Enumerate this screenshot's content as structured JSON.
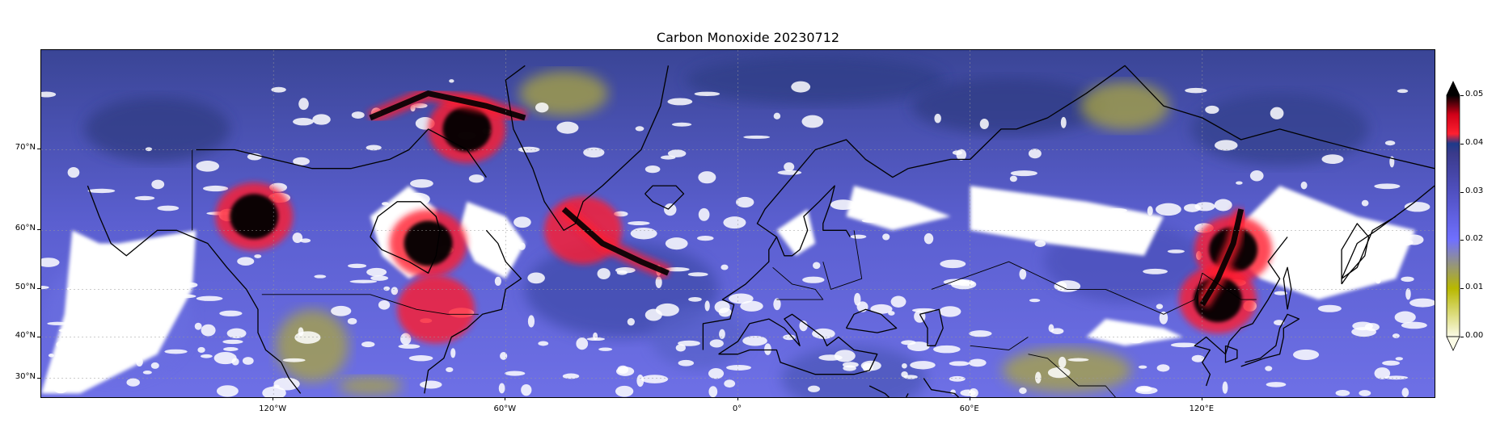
{
  "title": "Carbon Monoxide 20230712",
  "map": {
    "projection": "Mercator",
    "extent_lon": [
      -180,
      180
    ],
    "extent_lat": [
      25,
      78
    ],
    "coastlines": true,
    "country_borders": true,
    "gridlines": true,
    "missing_data_color": "#ffffff"
  },
  "latitude_labels": [
    {
      "lat": 70,
      "text": "70°N"
    },
    {
      "lat": 60,
      "text": "60°N"
    },
    {
      "lat": 50,
      "text": "50°N"
    },
    {
      "lat": 40,
      "text": "40°N"
    },
    {
      "lat": 30,
      "text": "30°N"
    }
  ],
  "longitude_labels": [
    {
      "lon": -120,
      "text": "120°W"
    },
    {
      "lon": -60,
      "text": "60°W"
    },
    {
      "lon": 0,
      "text": "0°"
    },
    {
      "lon": 60,
      "text": "60°E"
    },
    {
      "lon": 120,
      "text": "120°E"
    }
  ],
  "colorbar": {
    "min": 0.0,
    "max": 0.05,
    "extend": "both",
    "ticks": [
      "0.00",
      "0.01",
      "0.02",
      "0.03",
      "0.04",
      "0.05"
    ],
    "stops": [
      {
        "v": 0.0,
        "color": "#fbfbe6"
      },
      {
        "v": 0.01,
        "color": "#b8b800"
      },
      {
        "v": 0.02,
        "color": "#7070ff"
      },
      {
        "v": 0.03,
        "color": "#5050c0"
      },
      {
        "v": 0.038,
        "color": "#3a3a8a"
      },
      {
        "v": 0.04,
        "color": "#1e3a8a"
      },
      {
        "v": 0.042,
        "color": "#ff2030"
      },
      {
        "v": 0.046,
        "color": "#d00018"
      },
      {
        "v": 0.05,
        "color": "#000000"
      }
    ]
  },
  "hotspots": [
    {
      "region": "Western Canada",
      "lon": -125,
      "lat": 62,
      "level": "max"
    },
    {
      "region": "Hudson Bay / Quebec",
      "lon": -80,
      "lat": 58,
      "level": "max"
    },
    {
      "region": "Northern Canada arc",
      "lon": -70,
      "lat": 72,
      "level": "max"
    },
    {
      "region": "Greenland south",
      "lon": -40,
      "lat": 60,
      "level": "high"
    },
    {
      "region": "Eastern Siberia",
      "lon": 128,
      "lat": 57,
      "level": "max"
    },
    {
      "region": "Northeast China",
      "lon": 124,
      "lat": 48,
      "level": "max"
    },
    {
      "region": "Great Lakes",
      "lon": -78,
      "lat": 46,
      "level": "high"
    }
  ],
  "low_regions": [
    {
      "region": "Western US",
      "lon": -110,
      "lat": 38
    },
    {
      "region": "Tibetan Plateau",
      "lon": 85,
      "lat": 33
    },
    {
      "region": "Arctic Ocean",
      "lon": 95,
      "lat": 74
    },
    {
      "region": "Greenland north",
      "lon": -45,
      "lat": 74
    }
  ]
}
